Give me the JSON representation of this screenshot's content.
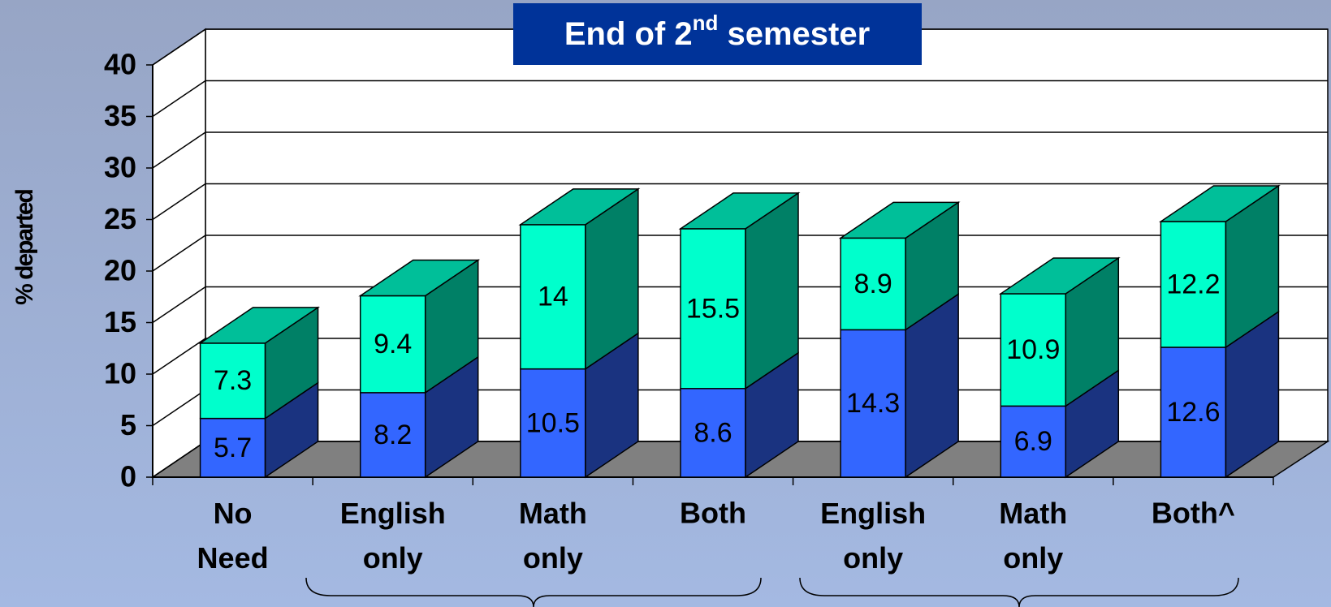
{
  "chart_data": {
    "type": "bar3d_stacked",
    "title_parts": [
      "End of 2",
      "nd",
      " semester"
    ],
    "y_label": "% departed",
    "categories": [
      "No Need",
      "English only",
      "Math only",
      "Both",
      "English only",
      "Math only",
      "Both^"
    ],
    "series": [
      {
        "color": "#3366ff",
        "side_color": "#1a3380",
        "values": [
          5.7,
          8.2,
          10.5,
          8.6,
          14.3,
          6.9,
          12.6
        ]
      },
      {
        "color": "#00ffcc",
        "side_color": "#008066",
        "top_color": "#00bf99",
        "values": [
          7.3,
          9.4,
          14,
          15.5,
          8.9,
          10.9,
          12.2
        ]
      }
    ],
    "ylim": [
      0,
      40
    ],
    "yticks": [
      0,
      5,
      10,
      15,
      20,
      25,
      30,
      35,
      40
    ],
    "grid": true
  }
}
